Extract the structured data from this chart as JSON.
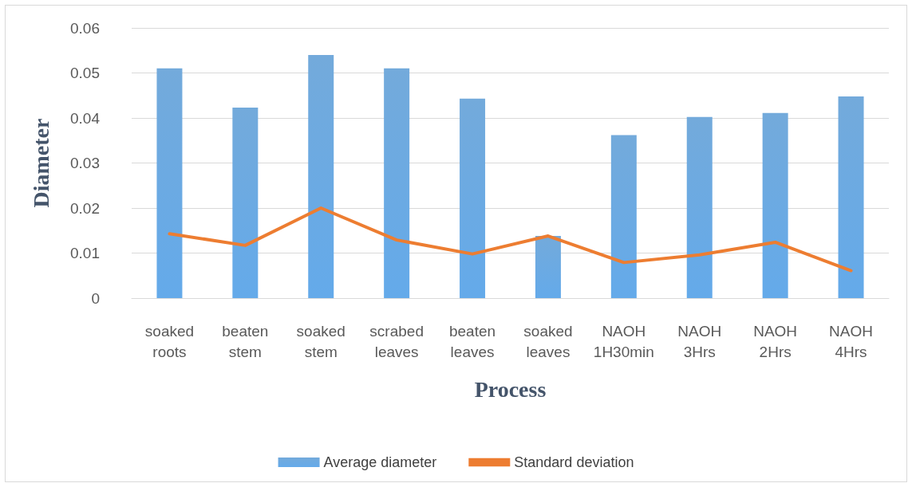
{
  "chart_data": {
    "type": "bar",
    "xlabel": "Process",
    "ylabel": "Diameter",
    "categories": [
      "soaked roots",
      "beaten stem",
      "soaked stem",
      "scrabed leaves",
      "beaten leaves",
      "soaked leaves",
      "NAOH 1H30min",
      "NAOH 3Hrs",
      "NAOH 2Hrs",
      "NAOH 4Hrs"
    ],
    "series": [
      {
        "name": "Average diameter",
        "color": "#5b9bd5",
        "values": [
          0.051,
          0.0423,
          0.054,
          0.051,
          0.0443,
          0.0138,
          0.0362,
          0.0402,
          0.0411,
          0.0448
        ]
      },
      {
        "name": "Standard deviation",
        "type": "line",
        "color": "#ed7d31",
        "values": [
          0.0143,
          0.0117,
          0.02,
          0.0129,
          0.0098,
          0.0138,
          0.0079,
          0.0096,
          0.0124,
          0.0061
        ]
      }
    ],
    "ylim": [
      0,
      0.06
    ],
    "yticks": [
      0,
      0.01,
      0.02,
      0.03,
      0.04,
      0.05,
      0.06
    ],
    "grid": "y",
    "legend": "bottom",
    "marker": "none"
  }
}
